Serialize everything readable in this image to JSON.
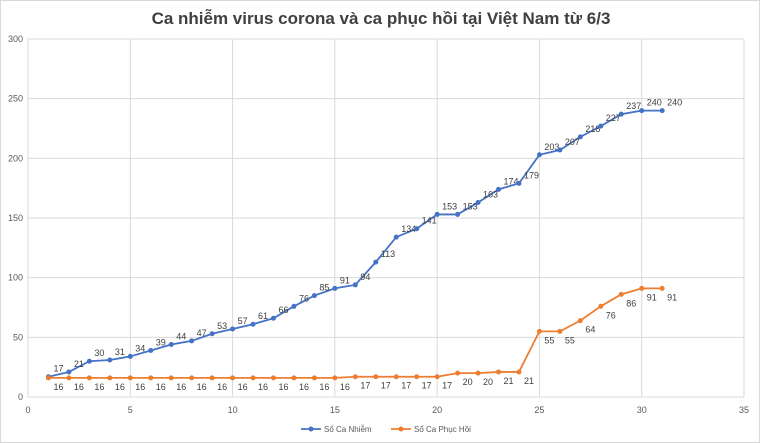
{
  "chart_data": {
    "type": "line",
    "title": "Ca nhiễm virus corona và ca phục hồi tại Việt Nam từ 6/3",
    "xlim": [
      0,
      35
    ],
    "ylim": [
      0,
      300
    ],
    "xticks": [
      0,
      5,
      10,
      15,
      20,
      25,
      30,
      35
    ],
    "yticks": [
      0,
      50,
      100,
      150,
      200,
      250,
      300
    ],
    "grid": true,
    "legend": "bottom",
    "x": [
      1,
      2,
      3,
      4,
      5,
      6,
      7,
      8,
      9,
      10,
      11,
      12,
      13,
      14,
      15,
      16,
      17,
      18,
      19,
      20,
      21,
      22,
      23,
      24,
      25,
      26,
      27,
      28,
      29,
      30,
      31
    ],
    "series": [
      {
        "name": "Số Ca Nhiễm",
        "color": "#4472c4",
        "values": [
          17,
          21,
          30,
          31,
          34,
          39,
          44,
          47,
          53,
          57,
          61,
          66,
          76,
          85,
          91,
          94,
          113,
          134,
          141,
          153,
          153,
          163,
          174,
          179,
          203,
          207,
          218,
          227,
          237,
          240,
          240
        ]
      },
      {
        "name": "Số Ca Phục Hồi",
        "color": "#ed7d31",
        "values": [
          16,
          16,
          16,
          16,
          16,
          16,
          16,
          16,
          16,
          16,
          16,
          16,
          16,
          16,
          16,
          17,
          17,
          17,
          17,
          17,
          20,
          20,
          21,
          21,
          55,
          55,
          64,
          76,
          86,
          91,
          91
        ]
      }
    ]
  }
}
